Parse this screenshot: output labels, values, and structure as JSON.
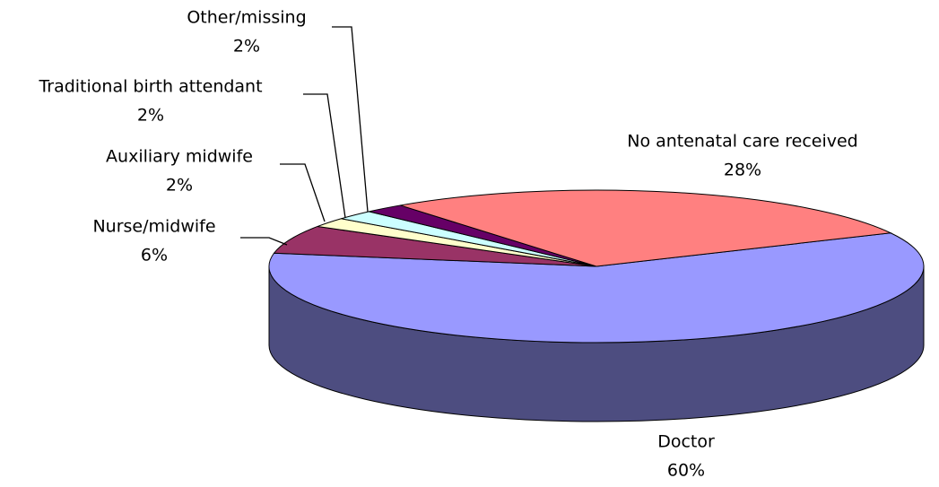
{
  "chart_data": {
    "type": "pie3d",
    "categories": [
      "Doctor",
      "Nurse/midwife",
      "Auxiliary midwife",
      "Traditional birth attendant",
      "Other/missing",
      "No antenatal care received"
    ],
    "values": [
      60,
      6,
      2,
      2,
      2,
      28
    ],
    "value_labels": [
      "60%",
      "6%",
      "2%",
      "2%",
      "2%",
      "28%"
    ],
    "colors": [
      "#9999ff",
      "#993366",
      "#ffffcc",
      "#ccffff",
      "#660066",
      "#ff8080"
    ]
  }
}
